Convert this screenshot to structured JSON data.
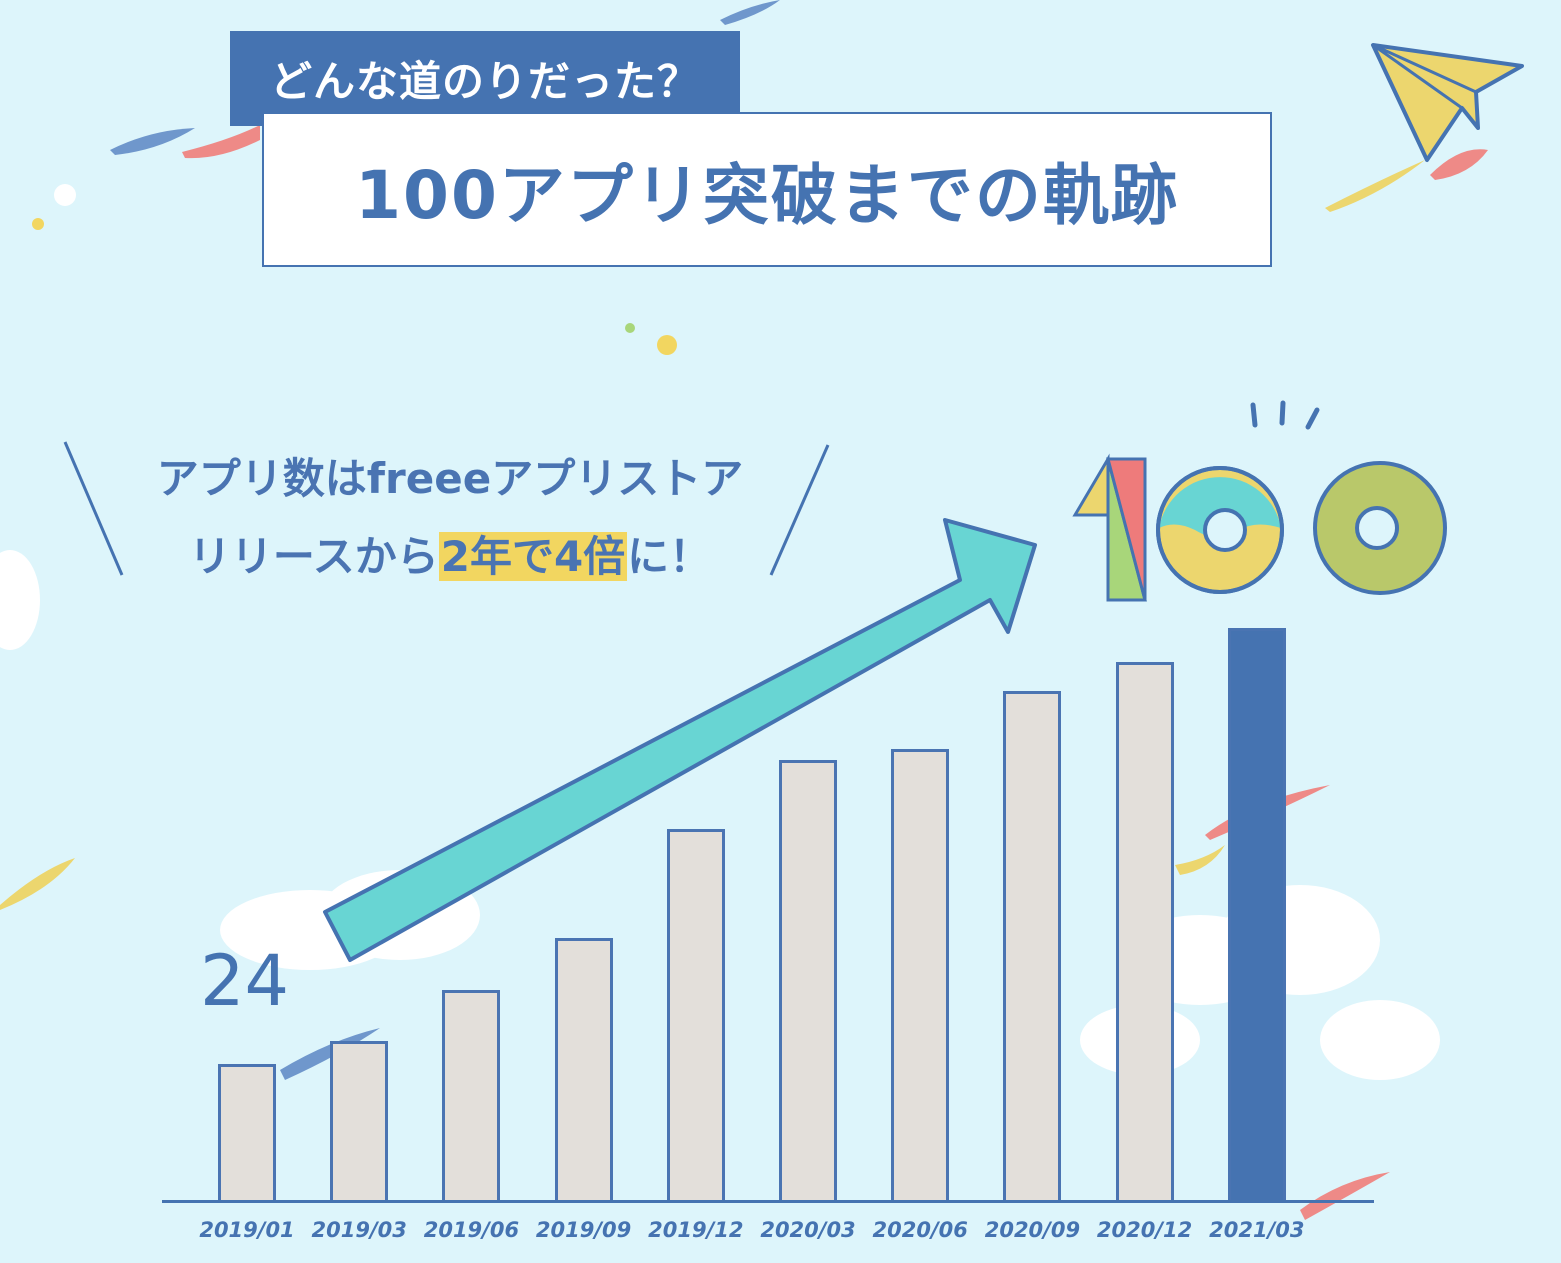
{
  "header": {
    "subtitle": "どんな道のりだった？",
    "title": "100アプリ突破までの軌跡"
  },
  "callout": {
    "line1": "アプリ数はfreeeアプリストア",
    "line2_prefix": "リリースから",
    "line2_highlight": "2年で4倍",
    "line2_suffix": "に！"
  },
  "badge": {
    "value": "100"
  },
  "first_label": "24",
  "colors": {
    "accent": "#4573b1",
    "bar": "#e3dfda",
    "arrow": "#68d5d3",
    "highlight": "#f2d660",
    "background": "#ddf5fb"
  },
  "chart_data": {
    "type": "bar",
    "title": "100アプリ突破までの軌跡",
    "categories": [
      "2019/01",
      "2019/03",
      "2019/06",
      "2019/09",
      "2019/12",
      "2020/03",
      "2020/06",
      "2020/09",
      "2020/12",
      "2021/03"
    ],
    "values": [
      24,
      28,
      37,
      46,
      65,
      77,
      79,
      89,
      94,
      100
    ],
    "annotations": [
      "24",
      "100"
    ],
    "xlabel": "",
    "ylabel": "",
    "ylim": [
      0,
      100
    ],
    "grid": false,
    "legend": null
  }
}
